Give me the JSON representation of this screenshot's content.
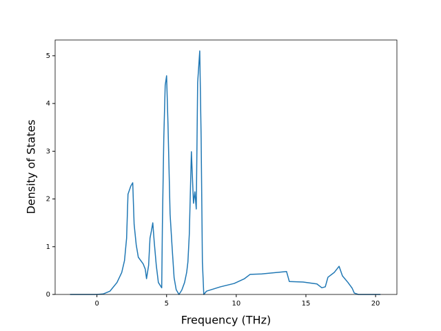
{
  "chart_data": {
    "type": "line",
    "xlabel": "Frequency (THz)",
    "ylabel": "Density of States",
    "x": [
      -1.93,
      0,
      0.45,
      0.94,
      1.44,
      1.78,
      1.98,
      2.13,
      2.23,
      2.43,
      2.57,
      2.67,
      2.82,
      2.97,
      3.32,
      3.47,
      3.56,
      3.71,
      3.81,
      3.91,
      4.01,
      4.11,
      4.26,
      4.41,
      4.65,
      4.7,
      4.8,
      4.9,
      5.0,
      5.1,
      5.25,
      5.4,
      5.54,
      5.69,
      5.89,
      6.09,
      6.29,
      6.44,
      6.53,
      6.63,
      6.78,
      6.93,
      7.03,
      7.13,
      7.23,
      7.38,
      7.48,
      7.57,
      7.67,
      7.87,
      8.86,
      9.85,
      10.59,
      10.99,
      11.83,
      13.61,
      13.81,
      14.8,
      15.79,
      16.14,
      16.39,
      16.58,
      17.03,
      17.38,
      17.62,
      18.02,
      18.32,
      18.47,
      18.76,
      20.35
    ],
    "series": [
      {
        "name": "DOS",
        "color": "#1f77b4",
        "values": [
          0,
          0,
          0.01,
          0.07,
          0.25,
          0.46,
          0.71,
          1.18,
          2.1,
          2.27,
          2.34,
          1.47,
          1.04,
          0.78,
          0.64,
          0.53,
          0.33,
          0.61,
          1.18,
          1.33,
          1.5,
          1.11,
          0.61,
          0.25,
          0.14,
          1.47,
          3.28,
          4.38,
          4.58,
          3.57,
          1.69,
          0.97,
          0.35,
          0.1,
          0,
          0.09,
          0.25,
          0.46,
          0.68,
          1.26,
          2.99,
          1.91,
          2.15,
          1.79,
          4.44,
          5.1,
          3.28,
          0.68,
          0,
          0.07,
          0.16,
          0.23,
          0.33,
          0.42,
          0.43,
          0.48,
          0.27,
          0.26,
          0.22,
          0.14,
          0.16,
          0.36,
          0.46,
          0.59,
          0.39,
          0.25,
          0.13,
          0.03,
          0,
          0
        ]
      }
    ],
    "xlim": [
      -3.0,
      21.53
    ],
    "ylim": [
      0,
      5.33
    ],
    "xticks": [
      0,
      5,
      10,
      15,
      20
    ],
    "yticks": [
      0,
      1,
      2,
      3,
      4,
      5
    ]
  }
}
